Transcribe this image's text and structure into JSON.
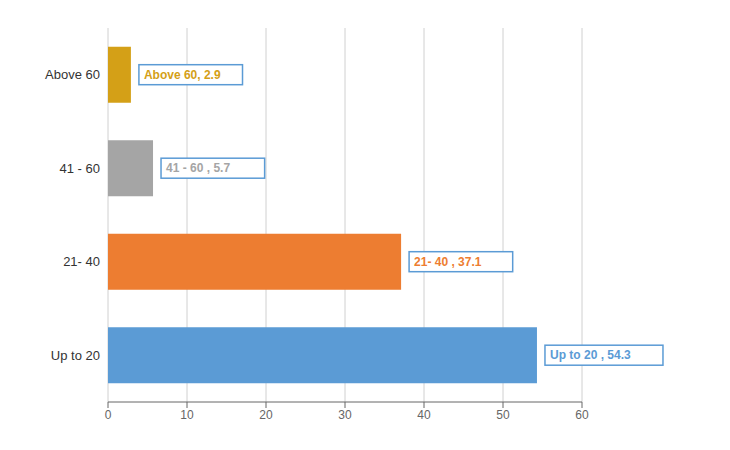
{
  "chart_data": {
    "type": "bar",
    "orientation": "horizontal",
    "categories": [
      "Up to 20",
      "21- 40",
      "41 - 60",
      "Above 60"
    ],
    "values": [
      54.3,
      37.1,
      5.7,
      2.9
    ],
    "value_labels": [
      "Up to 20 , 54.3",
      "21- 40 , 37.1",
      "41 - 60 , 5.7",
      "Above 60, 2.9"
    ],
    "colors": [
      "#5B9BD5",
      "#ED7D31",
      "#A5A5A5",
      "#D4A017"
    ],
    "xlim": [
      0,
      60
    ],
    "xticks": [
      0,
      10,
      20,
      30,
      40,
      50,
      60
    ],
    "grid": true,
    "data_labels": true
  }
}
